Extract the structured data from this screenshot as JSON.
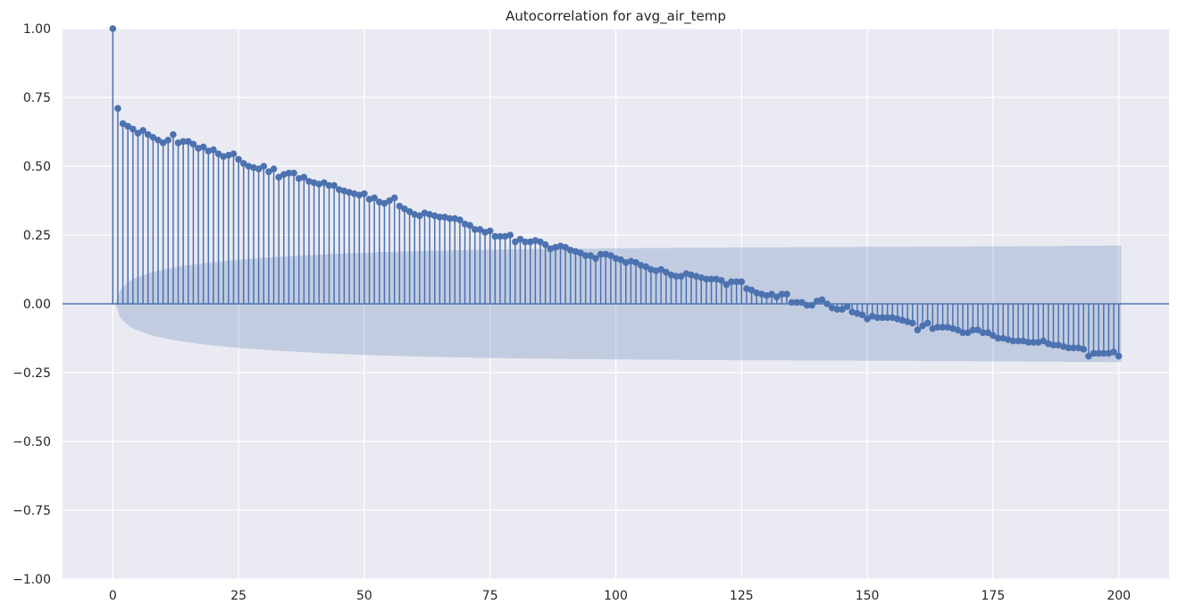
{
  "chart_data": {
    "type": "stem",
    "title": "Autocorrelation for avg_air_temp",
    "xlabel": "",
    "ylabel": "",
    "xlim": [
      -10,
      210
    ],
    "ylim": [
      -1.0,
      1.0
    ],
    "grid": true,
    "x_ticks": [
      0,
      25,
      50,
      75,
      100,
      125,
      150,
      175,
      200
    ],
    "x_tick_labels": [
      "0",
      "25",
      "50",
      "75",
      "100",
      "125",
      "150",
      "175",
      "200"
    ],
    "y_ticks": [
      1.0,
      0.75,
      0.5,
      0.25,
      0.0,
      -0.25,
      -0.5,
      -0.75,
      -1.0
    ],
    "y_tick_labels": [
      "1.00",
      "0.75",
      "0.50",
      "0.25",
      "0.00",
      "−0.25",
      "−0.50",
      "−0.75",
      "−1.00"
    ],
    "lags_start": 0,
    "acf": [
      1.0,
      0.71,
      0.655,
      0.645,
      0.635,
      0.62,
      0.63,
      0.615,
      0.605,
      0.595,
      0.585,
      0.595,
      0.615,
      0.585,
      0.59,
      0.59,
      0.58,
      0.565,
      0.57,
      0.555,
      0.56,
      0.545,
      0.535,
      0.54,
      0.545,
      0.525,
      0.51,
      0.5,
      0.495,
      0.49,
      0.5,
      0.48,
      0.49,
      0.46,
      0.47,
      0.475,
      0.475,
      0.455,
      0.46,
      0.445,
      0.44,
      0.435,
      0.44,
      0.43,
      0.43,
      0.415,
      0.41,
      0.405,
      0.4,
      0.395,
      0.4,
      0.38,
      0.385,
      0.37,
      0.365,
      0.375,
      0.385,
      0.355,
      0.345,
      0.335,
      0.325,
      0.32,
      0.33,
      0.325,
      0.32,
      0.315,
      0.315,
      0.31,
      0.31,
      0.305,
      0.29,
      0.285,
      0.27,
      0.27,
      0.26,
      0.265,
      0.245,
      0.245,
      0.245,
      0.25,
      0.225,
      0.235,
      0.225,
      0.225,
      0.23,
      0.225,
      0.215,
      0.2,
      0.205,
      0.21,
      0.205,
      0.195,
      0.19,
      0.185,
      0.175,
      0.175,
      0.165,
      0.18,
      0.18,
      0.175,
      0.165,
      0.16,
      0.15,
      0.155,
      0.15,
      0.14,
      0.135,
      0.125,
      0.12,
      0.125,
      0.115,
      0.105,
      0.1,
      0.1,
      0.11,
      0.105,
      0.1,
      0.095,
      0.09,
      0.09,
      0.09,
      0.085,
      0.07,
      0.08,
      0.08,
      0.08,
      0.055,
      0.05,
      0.04,
      0.035,
      0.03,
      0.035,
      0.025,
      0.035,
      0.035,
      0.005,
      0.005,
      0.005,
      -0.005,
      -0.005,
      0.01,
      0.015,
      0.0,
      -0.015,
      -0.02,
      -0.02,
      -0.01,
      -0.03,
      -0.035,
      -0.04,
      -0.055,
      -0.045,
      -0.05,
      -0.05,
      -0.05,
      -0.05,
      -0.055,
      -0.06,
      -0.065,
      -0.07,
      -0.095,
      -0.08,
      -0.07,
      -0.09,
      -0.085,
      -0.085,
      -0.085,
      -0.09,
      -0.095,
      -0.105,
      -0.105,
      -0.095,
      -0.095,
      -0.105,
      -0.105,
      -0.115,
      -0.125,
      -0.125,
      -0.13,
      -0.135,
      -0.135,
      -0.135,
      -0.14,
      -0.14,
      -0.14,
      -0.135,
      -0.145,
      -0.15,
      -0.15,
      -0.155,
      -0.16,
      -0.16,
      -0.16,
      -0.165,
      -0.19,
      -0.18,
      -0.18,
      -0.18,
      -0.18,
      -0.175,
      -0.19
    ],
    "confint_upper": [
      0.0,
      0.05,
      0.07,
      0.084,
      0.094,
      0.1,
      0.107,
      0.113,
      0.118,
      0.122,
      0.126,
      0.13,
      0.133,
      0.136,
      0.139,
      0.141,
      0.144,
      0.146,
      0.148,
      0.15,
      0.152,
      0.154,
      0.156,
      0.158,
      0.159,
      0.161,
      0.162,
      0.164,
      0.165,
      0.166,
      0.168,
      0.169,
      0.17,
      0.171,
      0.172,
      0.173,
      0.174,
      0.175,
      0.176,
      0.177,
      0.178,
      0.179,
      0.18,
      0.181,
      0.182,
      0.182,
      0.183,
      0.184,
      0.184,
      0.185,
      0.186,
      0.186,
      0.187,
      0.188,
      0.188,
      0.189,
      0.189,
      0.19,
      0.19,
      0.191,
      0.191,
      0.192,
      0.192,
      0.193,
      0.193,
      0.193,
      0.194,
      0.194,
      0.195,
      0.195,
      0.195,
      0.196,
      0.196,
      0.196,
      0.197,
      0.197,
      0.197,
      0.197,
      0.198,
      0.198,
      0.198,
      0.198,
      0.199,
      0.199,
      0.199,
      0.199,
      0.2,
      0.2,
      0.2,
      0.2,
      0.2,
      0.201,
      0.201,
      0.201,
      0.201,
      0.201,
      0.201,
      0.202,
      0.202,
      0.202,
      0.202,
      0.202,
      0.202,
      0.202,
      0.203,
      0.203,
      0.203,
      0.203,
      0.203,
      0.203,
      0.203,
      0.203,
      0.204,
      0.204,
      0.204,
      0.204,
      0.204,
      0.204,
      0.204,
      0.204,
      0.204,
      0.204,
      0.205,
      0.205,
      0.205,
      0.205,
      0.205,
      0.205,
      0.205,
      0.205,
      0.205,
      0.205,
      0.205,
      0.205,
      0.205,
      0.206,
      0.206,
      0.206,
      0.206,
      0.206,
      0.206,
      0.206,
      0.206,
      0.206,
      0.206,
      0.206,
      0.206,
      0.206,
      0.207,
      0.207,
      0.207,
      0.207,
      0.207,
      0.207,
      0.207,
      0.207,
      0.207,
      0.207,
      0.207,
      0.207,
      0.208,
      0.208,
      0.208,
      0.208,
      0.208,
      0.208,
      0.208,
      0.208,
      0.208,
      0.208,
      0.208,
      0.209,
      0.209,
      0.209,
      0.209,
      0.209,
      0.209,
      0.209,
      0.209,
      0.209,
      0.209,
      0.21,
      0.21,
      0.21,
      0.21,
      0.21,
      0.21,
      0.21,
      0.21,
      0.211,
      0.211,
      0.211,
      0.211,
      0.211,
      0.211,
      0.211,
      0.211,
      0.212,
      0.212,
      0.212,
      0.212
    ],
    "colors": {
      "stem": "#4c72b0",
      "marker": "#4c72b0",
      "confidence_band": "#4c72b0",
      "background": "#eaeaf2",
      "grid": "#ffffff"
    }
  }
}
